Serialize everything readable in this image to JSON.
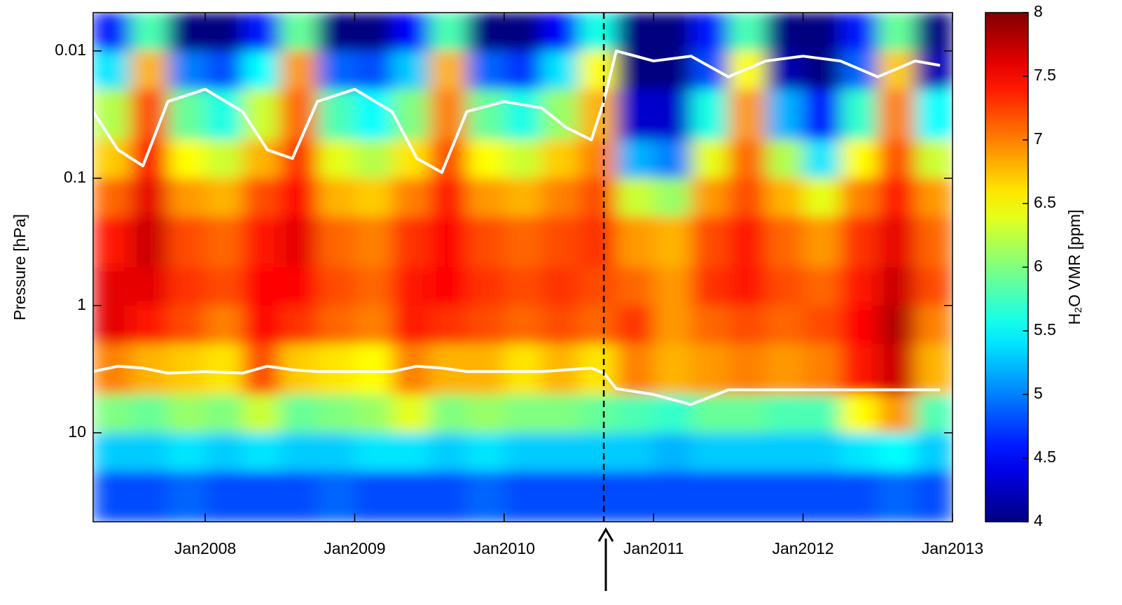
{
  "chart_data": {
    "type": "heatmap",
    "ylabel": "Pressure [hPa]",
    "log_y": true,
    "ylim": [
      50,
      0.005
    ],
    "yticks": [
      0.01,
      0.1,
      1,
      10
    ],
    "xlim": [
      "2007-04",
      "2013-01"
    ],
    "xticks": [
      {
        "value": "2008-01",
        "label": "Jan2008"
      },
      {
        "value": "2009-01",
        "label": "Jan2009"
      },
      {
        "value": "2010-01",
        "label": "Jan2010"
      },
      {
        "value": "2011-01",
        "label": "Jan2011"
      },
      {
        "value": "2012-01",
        "label": "Jan2012"
      },
      {
        "value": "2013-01",
        "label": "Jan2013"
      }
    ],
    "colormap": "jet",
    "clim": [
      4,
      8
    ],
    "cticks": [
      4,
      4.5,
      5,
      5.5,
      6,
      6.5,
      7,
      7.5,
      8
    ],
    "clabel": "H₂O VMR [ppm]",
    "x_edges": [
      "2007-04",
      "2007-07",
      "2007-10",
      "2008-01",
      "2008-04",
      "2008-07",
      "2008-10",
      "2009-01",
      "2009-04",
      "2009-07",
      "2009-10",
      "2010-01",
      "2010-04",
      "2010-07",
      "2010-10",
      "2011-01",
      "2011-04",
      "2011-07",
      "2011-10",
      "2012-01",
      "2012-04",
      "2012-07",
      "2012-10",
      "2013-01"
    ],
    "y_edges": [
      0.005,
      0.01,
      0.02,
      0.05,
      0.1,
      0.2,
      0.5,
      1,
      2,
      5,
      10,
      20,
      50
    ],
    "z": [
      [
        4.6,
        5.8,
        4.0,
        4.0,
        4.6,
        5.9,
        4.0,
        4.0,
        4.5,
        5.8,
        4.0,
        4.0,
        4.5,
        5.6,
        4.0,
        4.0,
        4.6,
        5.8,
        4.0,
        4.0,
        4.6,
        5.9,
        4.0
      ],
      [
        5.4,
        6.8,
        5.0,
        4.8,
        5.5,
        6.9,
        4.9,
        4.8,
        5.3,
        6.8,
        4.9,
        4.7,
        5.4,
        6.5,
        4.0,
        4.0,
        4.8,
        6.5,
        4.2,
        4.0,
        4.9,
        6.7,
        4.2
      ],
      [
        6.2,
        7.2,
        5.9,
        5.6,
        6.3,
        7.1,
        5.8,
        5.5,
        6.0,
        7.0,
        5.9,
        5.6,
        6.1,
        6.8,
        4.3,
        4.3,
        5.6,
        6.9,
        5.2,
        4.5,
        5.7,
        7.0,
        5.5
      ],
      [
        6.7,
        7.4,
        6.5,
        6.3,
        6.8,
        7.3,
        6.4,
        6.2,
        6.6,
        7.2,
        6.5,
        6.3,
        6.7,
        7.0,
        5.2,
        5.0,
        6.4,
        7.1,
        6.2,
        5.4,
        6.5,
        7.2,
        6.3
      ],
      [
        7.1,
        7.6,
        6.9,
        6.8,
        7.2,
        7.5,
        6.8,
        6.7,
        7.0,
        7.4,
        6.9,
        6.8,
        7.0,
        7.2,
        6.3,
        6.1,
        6.9,
        7.2,
        6.8,
        6.4,
        7.0,
        7.4,
        6.9
      ],
      [
        7.4,
        7.7,
        7.2,
        7.1,
        7.4,
        7.6,
        7.1,
        7.0,
        7.3,
        7.5,
        7.2,
        7.1,
        7.2,
        7.3,
        6.9,
        6.8,
        7.2,
        7.4,
        7.1,
        6.9,
        7.3,
        7.6,
        7.1
      ],
      [
        7.6,
        7.6,
        7.3,
        7.2,
        7.5,
        7.5,
        7.2,
        7.1,
        7.4,
        7.5,
        7.3,
        7.2,
        7.3,
        7.2,
        7.1,
        6.9,
        7.3,
        7.4,
        7.2,
        7.1,
        7.4,
        7.7,
        7.2
      ],
      [
        7.6,
        7.4,
        7.2,
        7.0,
        7.5,
        7.3,
        7.1,
        7.0,
        7.4,
        7.3,
        7.2,
        7.1,
        7.2,
        7.1,
        7.3,
        6.9,
        7.1,
        7.2,
        7.1,
        7.2,
        7.5,
        7.8,
        7.0
      ],
      [
        7.0,
        6.8,
        6.7,
        6.6,
        7.2,
        6.7,
        6.6,
        6.5,
        7.0,
        6.8,
        6.8,
        6.6,
        6.8,
        6.6,
        7.0,
        6.8,
        6.9,
        7.0,
        6.9,
        7.0,
        7.4,
        7.7,
        6.8
      ],
      [
        6.0,
        5.9,
        6.1,
        6.0,
        6.3,
        5.9,
        6.0,
        6.1,
        6.4,
        6.0,
        6.1,
        6.0,
        6.0,
        5.9,
        5.8,
        5.7,
        5.9,
        5.9,
        5.8,
        5.8,
        6.5,
        6.9,
        5.8
      ],
      [
        5.3,
        5.3,
        5.4,
        5.3,
        5.4,
        5.3,
        5.3,
        5.4,
        5.4,
        5.3,
        5.4,
        5.3,
        5.3,
        5.3,
        5.3,
        5.2,
        5.3,
        5.3,
        5.3,
        5.3,
        5.4,
        5.5,
        5.3
      ],
      [
        4.8,
        4.8,
        4.9,
        4.8,
        4.8,
        4.8,
        4.9,
        4.8,
        4.8,
        4.8,
        4.9,
        4.8,
        4.8,
        4.8,
        4.8,
        4.8,
        4.8,
        4.8,
        4.8,
        4.8,
        4.8,
        4.9,
        4.8
      ]
    ],
    "series": [
      {
        "color": "#ffffff",
        "x": [
          "2007-04",
          "2007-06",
          "2007-08",
          "2007-10",
          "2008-01",
          "2008-04",
          "2008-06",
          "2008-08",
          "2008-10",
          "2009-01",
          "2009-04",
          "2009-06",
          "2009-08",
          "2009-10",
          "2010-01",
          "2010-04",
          "2010-06",
          "2010-08",
          "2010-09",
          "2010-10",
          "2011-01",
          "2011-04",
          "2011-07",
          "2011-10",
          "2012-01",
          "2012-04",
          "2012-07",
          "2012-10",
          "2012-12"
        ],
        "values": [
          0.03,
          0.06,
          0.08,
          0.025,
          0.02,
          0.03,
          0.06,
          0.07,
          0.025,
          0.02,
          0.03,
          0.07,
          0.09,
          0.03,
          0.025,
          0.028,
          0.04,
          0.05,
          0.025,
          0.01,
          0.012,
          0.011,
          0.016,
          0.012,
          0.011,
          0.012,
          0.016,
          0.012,
          0.013
        ]
      },
      {
        "color": "#ffffff",
        "x": [
          "2007-04",
          "2007-06",
          "2007-08",
          "2007-10",
          "2008-01",
          "2008-04",
          "2008-06",
          "2008-08",
          "2008-10",
          "2009-01",
          "2009-04",
          "2009-06",
          "2009-08",
          "2009-10",
          "2010-01",
          "2010-04",
          "2010-06",
          "2010-08",
          "2010-09",
          "2010-10",
          "2011-01",
          "2011-04",
          "2011-07",
          "2011-10",
          "2012-01",
          "2012-04",
          "2012-07",
          "2012-10",
          "2012-12"
        ],
        "values": [
          3.3,
          3.0,
          3.1,
          3.4,
          3.3,
          3.4,
          3.0,
          3.2,
          3.3,
          3.3,
          3.3,
          3.0,
          3.1,
          3.3,
          3.3,
          3.3,
          3.2,
          3.1,
          3.4,
          4.5,
          5.0,
          6.0,
          4.6,
          4.6,
          4.6,
          4.6,
          4.6,
          4.6,
          4.6
        ]
      }
    ],
    "marker_x": "2010-09"
  }
}
